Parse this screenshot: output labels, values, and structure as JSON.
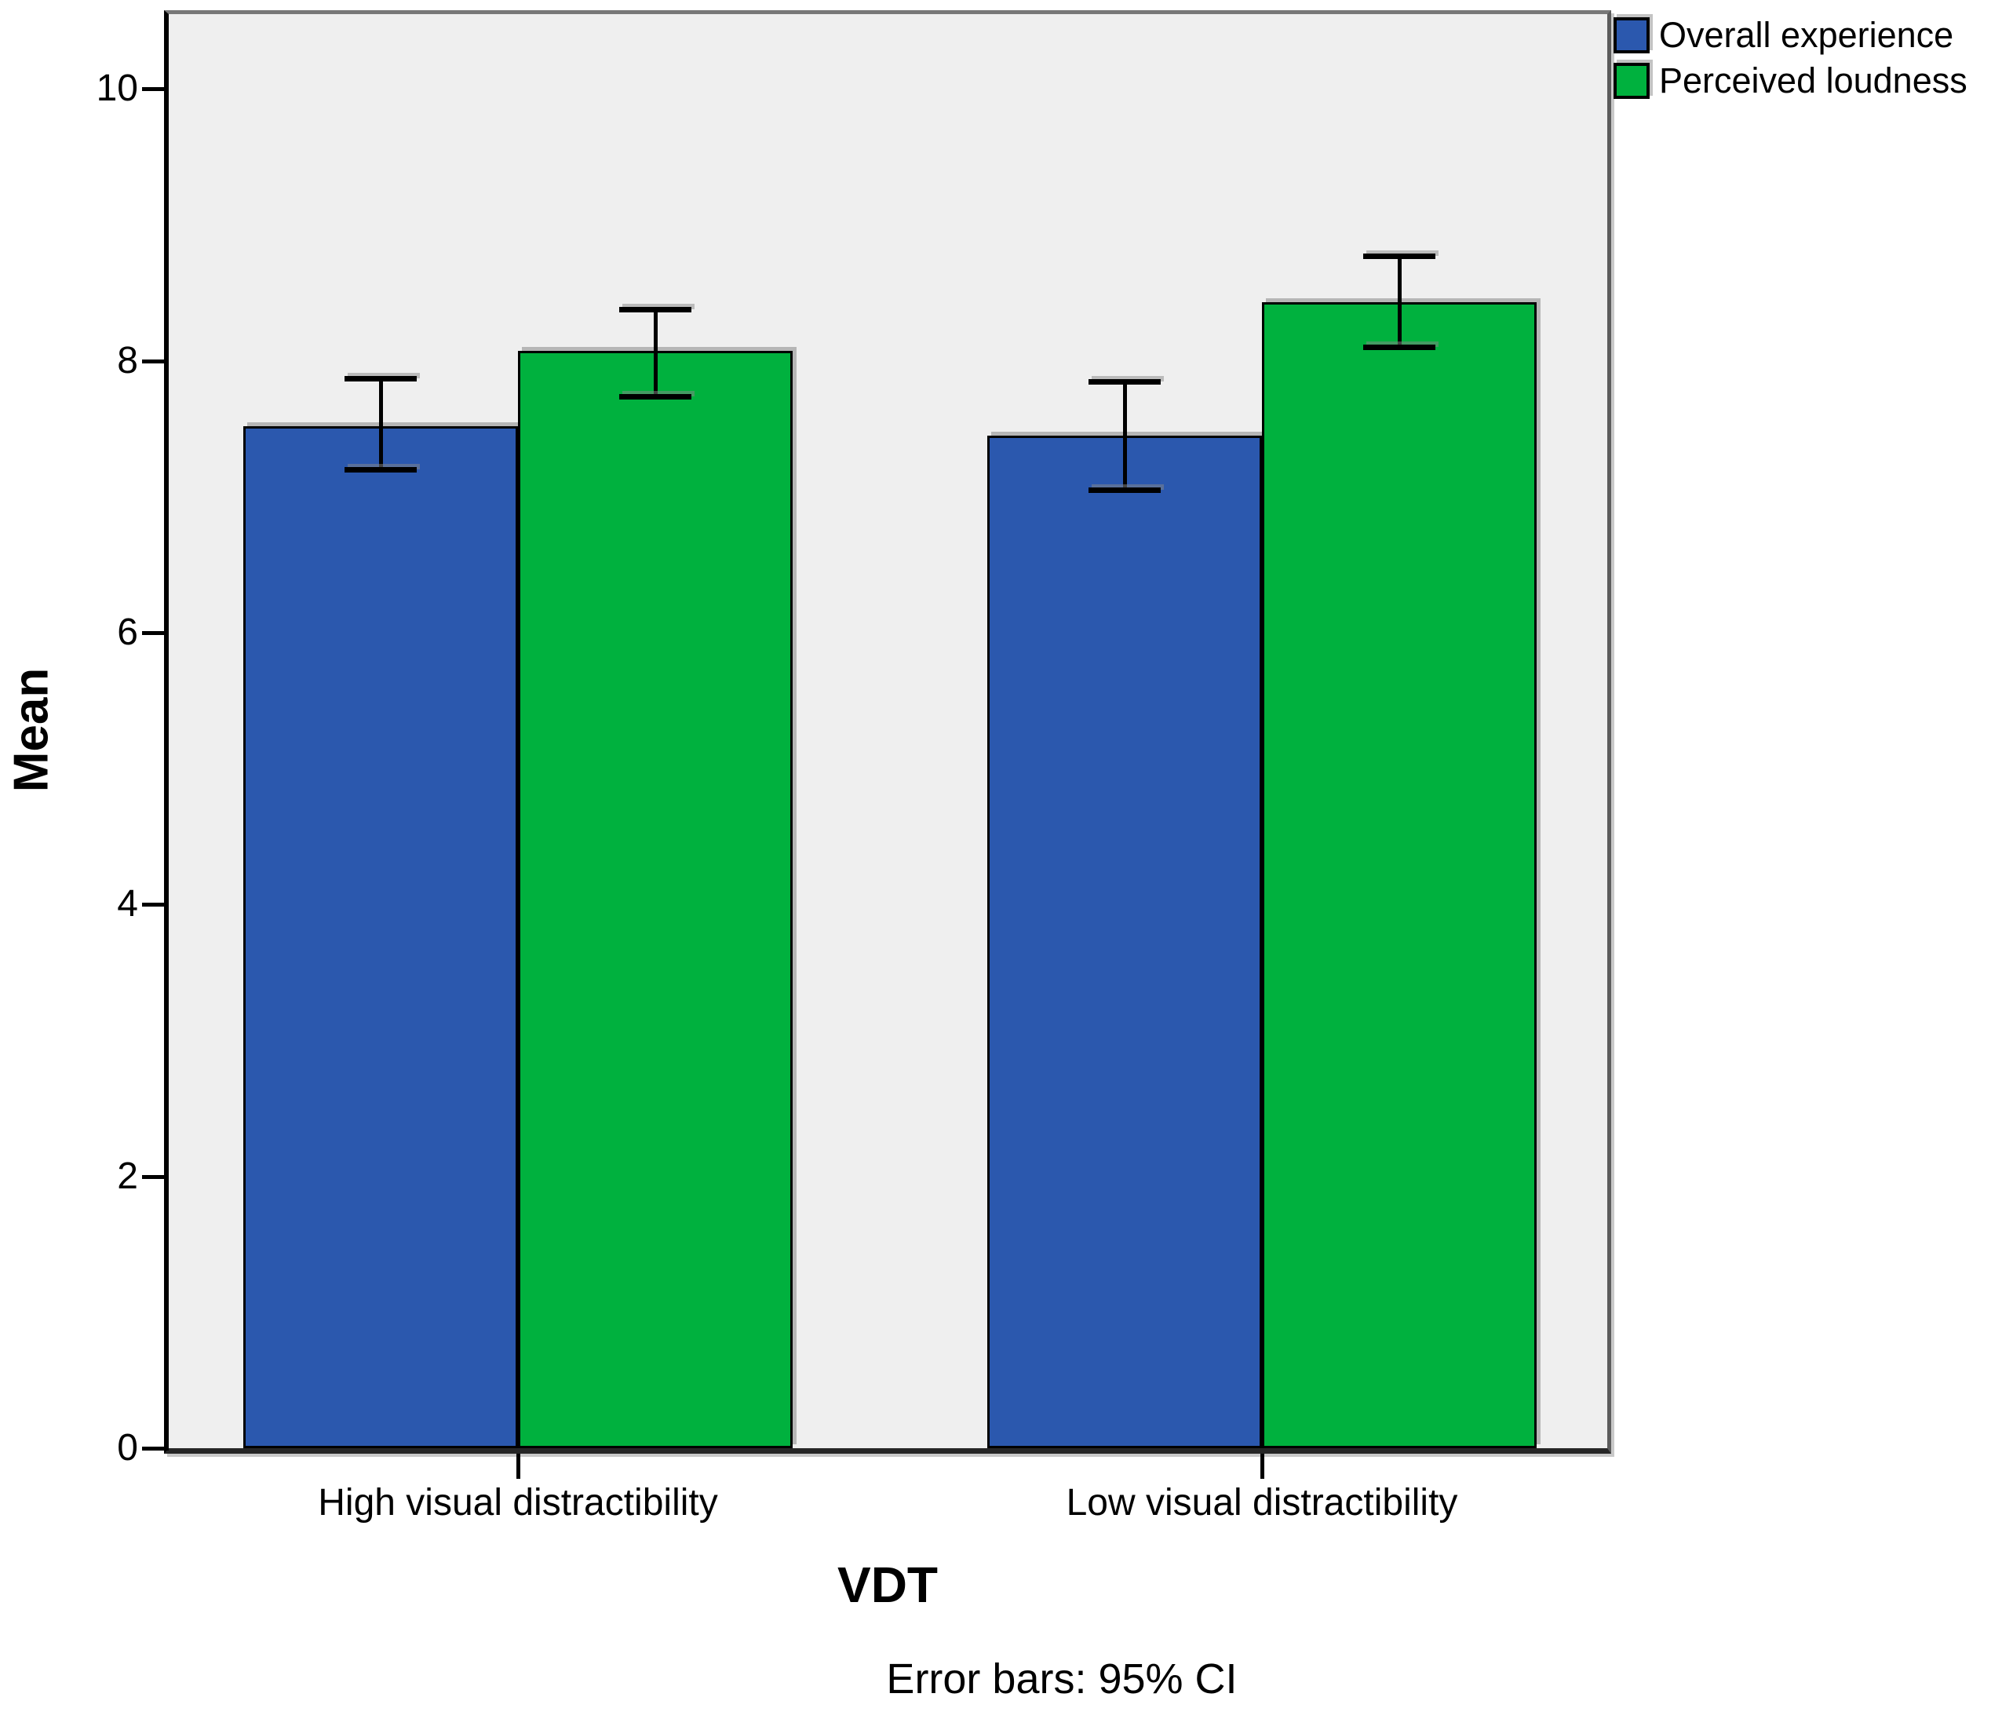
{
  "figure": {
    "background": "#ffffff",
    "plot_background": "#EFEFEF"
  },
  "chart_data": {
    "type": "bar",
    "title": "",
    "xlabel": "VDT",
    "ylabel": "Mean",
    "caption": "Error bars: 95% CI",
    "categories": [
      "High visual distractibility",
      "Low visual distractibility"
    ],
    "series": [
      {
        "name": "Overall experience",
        "color": "#2B58AE",
        "values": [
          7.52,
          7.45
        ],
        "ci_upper": [
          7.87,
          7.85
        ],
        "ci_lower": [
          7.2,
          7.05
        ]
      },
      {
        "name": "Perceived loudness",
        "color": "#00B13E",
        "values": [
          8.07,
          8.43
        ],
        "ci_upper": [
          8.38,
          8.77
        ],
        "ci_lower": [
          7.74,
          8.1
        ]
      }
    ],
    "ylim": [
      0,
      10.55
    ],
    "yticks": [
      0,
      2,
      4,
      6,
      8,
      10
    ],
    "grid": false,
    "legend_position": "top-right",
    "error_bars": "95% CI"
  }
}
